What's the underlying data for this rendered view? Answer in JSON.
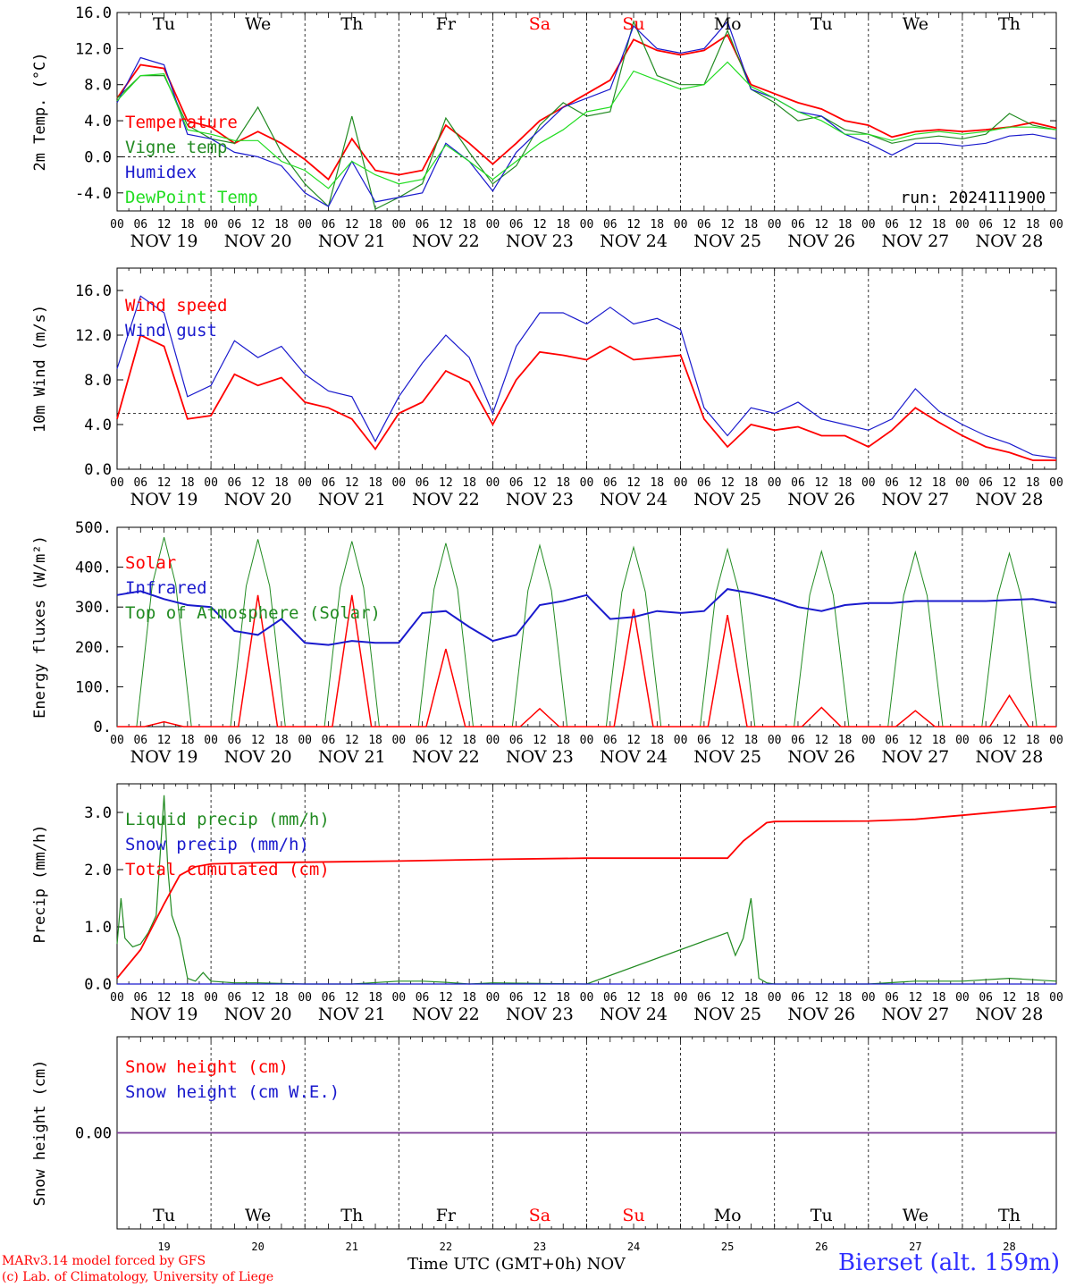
{
  "colors": {
    "red": "#ff0000",
    "green": "#228b22",
    "blue": "#1a1acd",
    "lightgreen": "#22dd22",
    "purple": "#7d3c98",
    "sat_sun": "#ff0000"
  },
  "days": [
    "Tu",
    "We",
    "Th",
    "Fr",
    "Sa",
    "Su",
    "Mo",
    "Tu",
    "We",
    "Th"
  ],
  "weekend_days": [
    4,
    5
  ],
  "date_labels": [
    "NOV 19",
    "NOV 20",
    "NOV 21",
    "NOV 22",
    "NOV 23",
    "NOV 24",
    "NOV 25",
    "NOV 26",
    "NOV 27",
    "NOV 28"
  ],
  "hour_ticks": [
    "00",
    "06",
    "12",
    "18"
  ],
  "last_hour_tick": "00",
  "day_numbers": [
    "19",
    "20",
    "21",
    "22",
    "23",
    "24",
    "25",
    "26",
    "27",
    "28"
  ],
  "run_label": "run: 2024111900",
  "footer": {
    "model": "MARv3.14 model forced by GFS",
    "lab": "(c) Lab. of Climatology, University of Liege",
    "time_axis": "Time UTC (GMT+0h)",
    "month": "NOV",
    "station": "Bierset (alt. 159m)"
  },
  "chart_data": [
    {
      "type": "line",
      "ylabel": "2m Temp. (°C)",
      "ylim": [
        -6,
        16
      ],
      "yticks": [
        -4,
        0,
        4,
        8,
        12,
        16
      ],
      "ytick_labels": [
        "-4.0",
        "0.0",
        "4.0",
        "8.0",
        "12.0",
        "16.0"
      ],
      "x_unit": "hours since NOV 19 00 UTC",
      "ref_line": 0,
      "series": [
        {
          "name": "Temperature",
          "color": "red",
          "x": [
            0,
            6,
            12,
            18,
            24,
            30,
            36,
            42,
            48,
            54,
            60,
            66,
            72,
            78,
            84,
            90,
            96,
            102,
            108,
            114,
            120,
            126,
            132,
            138,
            144,
            150,
            156,
            162,
            168,
            174,
            180,
            186,
            192,
            198,
            204,
            210,
            216,
            222,
            228,
            234,
            240
          ],
          "y": [
            6.5,
            10.2,
            9.8,
            4.0,
            3.3,
            1.5,
            2.8,
            1.5,
            -0.3,
            -2.5,
            2.0,
            -1.5,
            -2.0,
            -1.5,
            3.5,
            1.5,
            -0.8,
            1.5,
            4.0,
            5.5,
            7.0,
            8.5,
            13.0,
            11.8,
            11.3,
            11.8,
            13.5,
            8.0,
            7.0,
            6.0,
            5.3,
            4.0,
            3.5,
            2.2,
            2.8,
            3.0,
            2.8,
            3.0,
            3.3,
            3.8,
            3.2
          ]
        },
        {
          "name": "Vigne temp",
          "color": "green",
          "x": [
            0,
            6,
            12,
            18,
            24,
            30,
            36,
            42,
            48,
            54,
            60,
            66,
            72,
            78,
            84,
            90,
            96,
            102,
            108,
            114,
            120,
            126,
            132,
            138,
            144,
            150,
            156,
            162,
            168,
            174,
            180,
            186,
            192,
            198,
            204,
            210,
            216,
            222,
            228,
            234,
            240
          ],
          "y": [
            6.5,
            9.0,
            9.0,
            3.5,
            2.0,
            1.5,
            5.5,
            0.5,
            -3.0,
            -5.5,
            4.5,
            -5.8,
            -4.5,
            -3.0,
            4.3,
            0.5,
            -3.0,
            -1.0,
            3.5,
            6.0,
            4.5,
            5.0,
            15.0,
            9.0,
            8.0,
            8.0,
            14.0,
            7.5,
            6.0,
            4.0,
            4.5,
            3.0,
            2.5,
            1.5,
            2.0,
            2.3,
            2.0,
            2.5,
            4.8,
            3.5,
            3.0
          ]
        },
        {
          "name": "Humidex",
          "color": "blue",
          "x": [
            0,
            6,
            12,
            18,
            24,
            30,
            36,
            42,
            48,
            54,
            60,
            66,
            72,
            78,
            84,
            90,
            96,
            102,
            108,
            114,
            120,
            126,
            132,
            138,
            144,
            150,
            156,
            162,
            168,
            174,
            180,
            186,
            192,
            198,
            204,
            210,
            216,
            222,
            228,
            234,
            240
          ],
          "y": [
            6.0,
            11.0,
            10.2,
            2.5,
            2.0,
            0.5,
            0.0,
            -1.0,
            -4.0,
            -5.5,
            -0.5,
            -5.0,
            -4.5,
            -4.0,
            1.5,
            -0.5,
            -3.8,
            0.5,
            3.0,
            5.5,
            6.5,
            7.5,
            14.5,
            12.0,
            11.5,
            12.0,
            15.0,
            7.5,
            6.5,
            5.0,
            4.5,
            2.5,
            1.5,
            0.2,
            1.5,
            1.5,
            1.2,
            1.5,
            2.3,
            2.5,
            2.0
          ]
        },
        {
          "name": "DewPoint Temp",
          "color": "lightgreen",
          "x": [
            0,
            6,
            12,
            18,
            24,
            30,
            36,
            42,
            48,
            54,
            60,
            66,
            72,
            78,
            84,
            90,
            96,
            102,
            108,
            114,
            120,
            126,
            132,
            138,
            144,
            150,
            156,
            162,
            168,
            174,
            180,
            186,
            192,
            198,
            204,
            210,
            216,
            222,
            228,
            234,
            240
          ],
          "y": [
            6.2,
            9.0,
            9.2,
            3.0,
            2.5,
            1.8,
            1.8,
            -0.5,
            -1.5,
            -3.5,
            -0.5,
            -2.0,
            -3.0,
            -2.5,
            1.3,
            -0.5,
            -2.5,
            -0.5,
            1.5,
            3.0,
            5.0,
            5.5,
            9.5,
            8.5,
            7.5,
            8.0,
            10.5,
            7.8,
            6.5,
            5.0,
            4.0,
            2.5,
            2.5,
            1.8,
            2.5,
            2.8,
            2.5,
            2.8,
            3.3,
            3.3,
            3.0
          ]
        }
      ]
    },
    {
      "type": "line",
      "ylabel": "10m Wind (m/s)",
      "ylim": [
        0,
        18
      ],
      "yticks": [
        0,
        4,
        8,
        12,
        16
      ],
      "ytick_labels": [
        "0.0",
        "4.0",
        "8.0",
        "12.0",
        "16.0"
      ],
      "x_unit": "hours since NOV 19 00 UTC",
      "ref_line": 5,
      "series": [
        {
          "name": "Wind speed",
          "color": "red",
          "x": [
            0,
            6,
            12,
            18,
            24,
            30,
            36,
            42,
            48,
            54,
            60,
            66,
            72,
            78,
            84,
            90,
            96,
            102,
            108,
            114,
            120,
            126,
            132,
            138,
            144,
            150,
            156,
            162,
            168,
            174,
            180,
            186,
            192,
            198,
            204,
            210,
            216,
            222,
            228,
            234,
            240
          ],
          "y": [
            4.5,
            12.0,
            11.0,
            4.5,
            4.8,
            8.5,
            7.5,
            8.2,
            6.0,
            5.5,
            4.5,
            1.8,
            5.0,
            6.0,
            8.8,
            7.8,
            4.0,
            8.0,
            10.5,
            10.2,
            9.8,
            11.0,
            9.8,
            10.0,
            10.2,
            4.5,
            2.0,
            4.0,
            3.5,
            3.8,
            3.0,
            3.0,
            2.0,
            3.5,
            5.5,
            4.2,
            3.0,
            2.0,
            1.5,
            0.8,
            0.8
          ]
        },
        {
          "name": "Wind gust",
          "color": "blue",
          "x": [
            0,
            6,
            12,
            18,
            24,
            30,
            36,
            42,
            48,
            54,
            60,
            66,
            72,
            78,
            84,
            90,
            96,
            102,
            108,
            114,
            120,
            126,
            132,
            138,
            144,
            150,
            156,
            162,
            168,
            174,
            180,
            186,
            192,
            198,
            204,
            210,
            216,
            222,
            228,
            234,
            240
          ],
          "y": [
            9.0,
            15.5,
            14.0,
            6.5,
            7.5,
            11.5,
            10.0,
            11.0,
            8.5,
            7.0,
            6.5,
            2.5,
            6.5,
            9.5,
            12.0,
            10.0,
            5.0,
            11.0,
            14.0,
            14.0,
            13.0,
            14.5,
            13.0,
            13.5,
            12.5,
            5.5,
            3.0,
            5.5,
            5.0,
            6.0,
            4.5,
            4.0,
            3.5,
            4.5,
            7.2,
            5.2,
            4.0,
            3.0,
            2.3,
            1.3,
            1.0
          ]
        }
      ]
    },
    {
      "type": "line",
      "ylabel": "Energy fluxes (W/m²)",
      "ylim": [
        0,
        500
      ],
      "yticks": [
        0,
        100,
        200,
        300,
        400,
        500
      ],
      "ytick_labels": [
        "0.",
        "100.",
        "200.",
        "300.",
        "400.",
        "500."
      ],
      "x_unit": "hours since NOV 19 00 UTC",
      "toa_peaks": [
        475,
        470,
        465,
        460,
        455,
        450,
        445,
        440,
        438,
        435
      ],
      "solar_peaks": [
        12,
        330,
        330,
        195,
        45,
        295,
        280,
        48,
        40,
        78
      ],
      "series": [
        {
          "name": "Solar",
          "color": "red"
        },
        {
          "name": "Infrared",
          "color": "blue",
          "x": [
            0,
            6,
            12,
            18,
            24,
            30,
            36,
            42,
            48,
            54,
            60,
            66,
            72,
            78,
            84,
            90,
            96,
            102,
            108,
            114,
            120,
            126,
            132,
            138,
            144,
            150,
            156,
            162,
            168,
            174,
            180,
            186,
            192,
            198,
            204,
            210,
            216,
            222,
            228,
            234,
            240
          ],
          "y": [
            330,
            340,
            320,
            305,
            300,
            240,
            230,
            270,
            210,
            205,
            215,
            210,
            210,
            285,
            290,
            250,
            215,
            230,
            305,
            315,
            330,
            270,
            275,
            290,
            285,
            290,
            345,
            335,
            320,
            300,
            290,
            305,
            310,
            310,
            315,
            315,
            315,
            315,
            318,
            320,
            310
          ]
        },
        {
          "name": "Top of Atmosphere (Solar)",
          "color": "green"
        }
      ]
    },
    {
      "type": "line",
      "ylabel": "Precip (mm/h)",
      "ylim": [
        0,
        3.5
      ],
      "yticks": [
        0,
        1,
        2,
        3
      ],
      "ytick_labels": [
        "0.0",
        "1.0",
        "2.0",
        "3.0"
      ],
      "x_unit": "hours since NOV 19 00 UTC",
      "series": [
        {
          "name": "Liquid precip (mm/h)",
          "color": "green",
          "x": [
            0,
            1,
            2,
            4,
            6,
            8,
            10,
            12,
            13,
            14,
            16,
            18,
            20,
            22,
            24,
            30,
            36,
            48,
            60,
            72,
            78,
            84,
            90,
            96,
            120,
            156,
            158,
            160,
            162,
            164,
            166,
            168,
            180,
            192,
            204,
            216,
            228,
            240
          ],
          "y": [
            0.7,
            1.5,
            0.8,
            0.65,
            0.7,
            0.9,
            1.2,
            3.3,
            2.0,
            1.2,
            0.8,
            0.1,
            0.05,
            0.2,
            0.05,
            0.02,
            0.02,
            0.0,
            0.0,
            0.05,
            0.05,
            0.03,
            0.0,
            0.02,
            0.0,
            0.9,
            0.5,
            0.8,
            1.5,
            0.1,
            0.02,
            0.0,
            0.0,
            0.0,
            0.05,
            0.05,
            0.1,
            0.05
          ]
        },
        {
          "name": "Snow precip (mm/h)",
          "color": "blue",
          "x": [
            0,
            240
          ],
          "y": [
            0,
            0
          ]
        },
        {
          "name": "Total cumulated (cm)",
          "color": "red",
          "x": [
            0,
            6,
            12,
            16,
            20,
            24,
            36,
            48,
            72,
            96,
            120,
            144,
            150,
            156,
            160,
            166,
            168,
            192,
            204,
            216,
            240
          ],
          "y": [
            0.1,
            0.6,
            1.4,
            1.9,
            2.05,
            2.1,
            2.12,
            2.13,
            2.15,
            2.18,
            2.2,
            2.2,
            2.2,
            2.2,
            2.5,
            2.82,
            2.84,
            2.85,
            2.88,
            2.95,
            3.1
          ]
        }
      ]
    },
    {
      "type": "line",
      "ylabel": "Snow height (cm)",
      "ylim": [
        -1,
        1
      ],
      "yticks": [
        0
      ],
      "ytick_labels": [
        "0.00"
      ],
      "x_unit": "hours since NOV 19 00 UTC",
      "series": [
        {
          "name": "Snow height (cm)",
          "color": "red",
          "x": [
            0,
            240
          ],
          "y": [
            0,
            0
          ]
        },
        {
          "name": "Snow height (cm W.E.)",
          "color": "blue",
          "x": [
            0,
            240
          ],
          "y": [
            0,
            0
          ]
        }
      ]
    }
  ]
}
